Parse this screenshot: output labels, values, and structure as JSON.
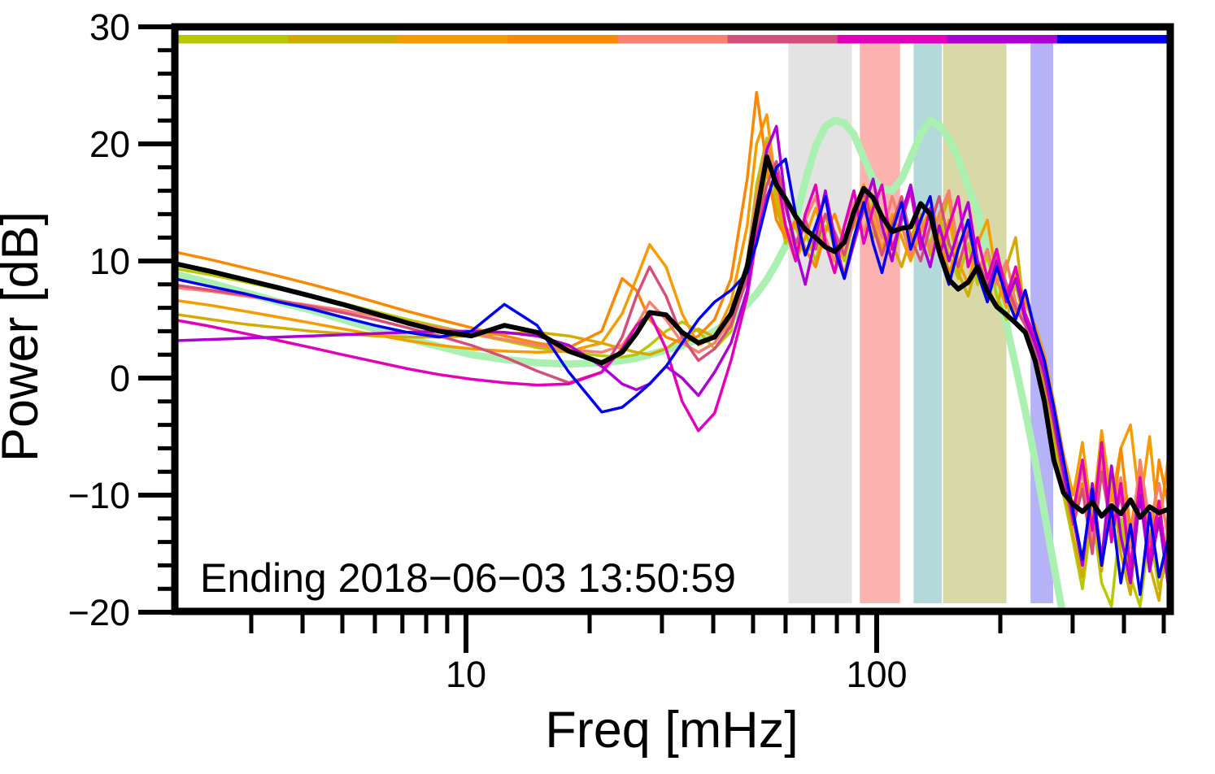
{
  "figure": {
    "xlabel": "Freq [mHz]",
    "ylabel": "Power [dB]",
    "annotation": "Ending 2018−06−03 13:50:59"
  },
  "chart_data": {
    "type": "line",
    "x_scale": "log",
    "xlabel": "Freq [mHz]",
    "ylabel": "Power [dB]",
    "xlim": [
      2,
      520
    ],
    "ylim": [
      -20,
      30
    ],
    "grid": false,
    "legend": "none",
    "annotation": "Ending 2018−06−03 13:50:59",
    "x_ticks": [
      {
        "v": 10,
        "label": "10"
      },
      {
        "v": 100,
        "label": "100"
      }
    ],
    "x_minor_ticks": [
      3,
      4,
      5,
      6,
      7,
      8,
      9,
      20,
      30,
      40,
      50,
      60,
      70,
      80,
      90,
      200,
      300,
      400,
      500
    ],
    "y_ticks": [
      {
        "v": 30,
        "label": "30"
      },
      {
        "v": 20,
        "label": "20"
      },
      {
        "v": 10,
        "label": "10"
      },
      {
        "v": 0,
        "label": "0"
      },
      {
        "v": -10,
        "label": "−10"
      },
      {
        "v": -20,
        "label": "−20"
      }
    ],
    "y_minor_ticks": [
      -18,
      -16,
      -14,
      -12,
      -8,
      -6,
      -4,
      -2,
      2,
      4,
      6,
      8,
      12,
      14,
      16,
      18,
      22,
      24,
      26,
      28
    ],
    "top_bar": {
      "layout": "9 equal-width segments spanning plot top",
      "segments": [
        {
          "name": "yellow-green",
          "color": "#b8c800"
        },
        {
          "name": "gold",
          "color": "#d2ab00"
        },
        {
          "name": "orange",
          "color": "#f59d00"
        },
        {
          "name": "dark-orange",
          "color": "#fb8800"
        },
        {
          "name": "salmon",
          "color": "#f97f6e"
        },
        {
          "name": "crimson",
          "color": "#d4507a"
        },
        {
          "name": "magenta",
          "color": "#e300bb"
        },
        {
          "name": "purple",
          "color": "#ad00d2"
        },
        {
          "name": "blue",
          "color": "#0000f0"
        }
      ]
    },
    "bands": [
      {
        "name": "gray",
        "color": "#e3e3e3",
        "x_from": 61,
        "x_to": 87
      },
      {
        "name": "pink",
        "color": "#fcb2ae",
        "x_from": 91,
        "x_to": 114
      },
      {
        "name": "teal",
        "color": "#b4d9da",
        "x_from": 123,
        "x_to": 144
      },
      {
        "name": "olive",
        "color": "#d8d9a7",
        "x_from": 145,
        "x_to": 207
      },
      {
        "name": "lavender",
        "color": "#b6b2f8",
        "x_from": 237,
        "x_to": 269
      }
    ],
    "x": [
      2,
      2.4,
      2.9,
      3.5,
      4.2,
      5,
      6,
      7.2,
      8.6,
      10.3,
      12.4,
      14.9,
      17.8,
      21.4,
      24,
      26,
      28,
      30.7,
      33.6,
      36.8,
      40.3,
      44.2,
      48.4,
      51,
      54,
      57,
      60,
      63.5,
      67,
      71,
      75,
      79,
      83.4,
      88,
      93,
      98,
      103,
      109,
      115,
      121,
      128,
      135,
      142,
      150,
      158,
      167,
      176,
      186,
      196,
      207,
      218,
      230,
      243,
      256,
      270,
      285,
      301,
      317,
      335,
      353,
      373,
      393,
      415,
      438,
      462,
      487,
      514
    ],
    "series": [
      {
        "name": "smooth-envelope",
        "color": "#aaf0b0",
        "width": 9,
        "values": [
          8.8,
          8.1,
          7.3,
          6.5,
          5.8,
          5.0,
          4.2,
          3.4,
          2.7,
          2.0,
          1.6,
          1.3,
          1.2,
          1.3,
          1.5,
          1.7,
          2.0,
          2.4,
          2.8,
          3.3,
          4.0,
          5.0,
          6.3,
          7.2,
          8.4,
          9.8,
          11.3,
          13.5,
          16.8,
          19.8,
          21.5,
          22.0,
          21.8,
          20.8,
          18.8,
          17.0,
          16.2,
          16.0,
          17.0,
          18.8,
          20.8,
          22.0,
          21.6,
          20.4,
          18.8,
          16.3,
          14.3,
          10.8,
          8.0,
          4.6,
          1.0,
          -2.8,
          -7.0,
          -11.5,
          -16.0,
          -20.5,
          null,
          null,
          null,
          null,
          null,
          null,
          null,
          null,
          null,
          null,
          null
        ]
      },
      {
        "name": "yellow-green",
        "color": "#b8c800",
        "width": 3.5,
        "values": [
          9.3,
          8.8,
          8.2,
          7.6,
          7.0,
          6.4,
          5.7,
          5.0,
          4.4,
          3.8,
          3.2,
          2.6,
          2.2,
          1.9,
          1.8,
          2.0,
          2.8,
          4.0,
          4.8,
          4.0,
          2.5,
          4.0,
          10.0,
          16.5,
          20.5,
          15.0,
          11.5,
          13.5,
          12.5,
          10.0,
          13.0,
          12.0,
          10.0,
          13.5,
          12.5,
          15.0,
          12.5,
          10.0,
          13.0,
          11.0,
          13.0,
          11.5,
          14.0,
          10.5,
          8.5,
          11.5,
          8.0,
          10.5,
          7.0,
          5.0,
          8.0,
          4.5,
          2.0,
          -1.0,
          -5.5,
          -10.0,
          -14.0,
          -18.0,
          -11.5,
          -17.5,
          -19.5,
          -12.0,
          -17.0,
          -19.5,
          -13.0,
          -18.0,
          -15.0
        ]
      },
      {
        "name": "gold",
        "color": "#d2ab00",
        "width": 3.5,
        "values": [
          5.4,
          5.0,
          4.6,
          4.3,
          4.0,
          3.8,
          3.6,
          3.5,
          3.5,
          3.6,
          3.8,
          3.9,
          3.6,
          3.0,
          2.5,
          2.2,
          2.0,
          2.5,
          3.5,
          4.2,
          3.5,
          4.5,
          9.0,
          14.0,
          17.5,
          14.5,
          12.0,
          13.0,
          10.5,
          12.0,
          14.0,
          11.0,
          9.0,
          12.0,
          14.5,
          12.0,
          14.0,
          11.5,
          9.5,
          12.0,
          14.0,
          10.5,
          13.0,
          15.5,
          9.0,
          7.0,
          10.0,
          8.0,
          6.0,
          9.5,
          12.0,
          5.0,
          2.5,
          -0.5,
          -4.5,
          -9.0,
          -13.5,
          -17.0,
          -10.0,
          -16.5,
          -8.5,
          -15.0,
          -18.5,
          -9.5,
          -16.0,
          -19.0,
          -12.0
        ]
      },
      {
        "name": "orange",
        "color": "#f59d00",
        "width": 3.5,
        "values": [
          6.6,
          6.2,
          5.7,
          5.2,
          4.7,
          4.2,
          3.7,
          3.2,
          2.8,
          2.5,
          2.3,
          2.2,
          2.3,
          3.0,
          5.5,
          8.5,
          11.4,
          9.5,
          5.5,
          2.8,
          3.5,
          6.5,
          13.0,
          20.0,
          22.5,
          16.0,
          12.5,
          10.0,
          12.0,
          14.5,
          12.0,
          9.0,
          11.5,
          14.5,
          16.5,
          13.5,
          11.0,
          14.0,
          12.0,
          10.0,
          12.5,
          14.5,
          11.0,
          13.5,
          10.0,
          8.0,
          11.5,
          13.5,
          8.5,
          6.0,
          9.0,
          6.5,
          4.5,
          2.0,
          -2.0,
          -6.5,
          -10.0,
          -5.5,
          -12.0,
          -4.5,
          -10.5,
          -6.0,
          -4.0,
          -11.0,
          -5.0,
          -13.0,
          -6.5
        ]
      },
      {
        "name": "dark-orange",
        "color": "#fb8800",
        "width": 3.5,
        "values": [
          10.7,
          10.1,
          9.4,
          8.7,
          8.0,
          7.3,
          6.5,
          5.7,
          5.0,
          4.3,
          3.6,
          3.0,
          2.6,
          4.0,
          8.5,
          7.5,
          5.0,
          3.5,
          3.0,
          3.6,
          5.0,
          8.5,
          17.0,
          24.4,
          18.0,
          13.5,
          12.0,
          13.5,
          11.0,
          9.5,
          12.5,
          14.0,
          11.5,
          13.0,
          15.5,
          13.0,
          10.5,
          13.5,
          15.0,
          11.5,
          13.5,
          15.5,
          12.0,
          9.0,
          11.0,
          13.0,
          9.0,
          7.0,
          10.5,
          7.5,
          5.5,
          7.0,
          4.0,
          1.0,
          -3.0,
          -8.0,
          -12.0,
          -9.0,
          -14.0,
          -7.5,
          -12.5,
          -6.0,
          -13.0,
          -8.0,
          -15.0,
          -7.0,
          -11.0
        ]
      },
      {
        "name": "salmon",
        "color": "#f97f6e",
        "width": 3.5,
        "values": [
          7.7,
          7.4,
          7.0,
          6.6,
          6.2,
          5.8,
          5.3,
          4.8,
          4.3,
          3.8,
          3.3,
          2.8,
          2.4,
          2.2,
          2.8,
          4.5,
          6.5,
          5.0,
          3.0,
          2.2,
          3.0,
          5.0,
          10.0,
          15.5,
          20.0,
          17.0,
          13.0,
          11.0,
          13.5,
          15.5,
          12.0,
          10.0,
          13.0,
          15.0,
          12.5,
          14.5,
          12.0,
          15.5,
          13.0,
          10.5,
          13.5,
          11.0,
          14.0,
          16.0,
          11.0,
          13.0,
          9.0,
          11.0,
          8.0,
          10.0,
          6.5,
          5.0,
          3.0,
          0.5,
          -3.5,
          -7.5,
          -11.0,
          -8.0,
          -13.5,
          -6.5,
          -12.0,
          -8.5,
          -14.5,
          -7.0,
          -12.5,
          -9.0,
          -14.0
        ]
      },
      {
        "name": "crimson",
        "color": "#d4507a",
        "width": 3.5,
        "values": [
          7.9,
          7.5,
          7.1,
          6.6,
          6.1,
          5.6,
          5.0,
          4.3,
          3.6,
          2.8,
          1.8,
          0.6,
          -0.4,
          0.5,
          3.5,
          7.0,
          9.5,
          7.0,
          3.5,
          1.5,
          2.5,
          4.5,
          8.5,
          13.0,
          16.5,
          18.5,
          14.5,
          11.5,
          13.5,
          11.0,
          14.0,
          12.5,
          10.5,
          13.5,
          16.0,
          13.0,
          10.5,
          13.0,
          15.5,
          12.0,
          10.0,
          13.0,
          15.5,
          11.5,
          9.5,
          12.5,
          10.0,
          8.0,
          10.5,
          8.0,
          6.0,
          4.5,
          2.5,
          0.0,
          -4.0,
          -8.5,
          -12.5,
          -9.5,
          -15.0,
          -8.0,
          -13.0,
          -10.0,
          -16.0,
          -9.0,
          -14.0,
          -11.0,
          -16.5
        ]
      },
      {
        "name": "magenta",
        "color": "#e300bb",
        "width": 3.5,
        "values": [
          4.9,
          4.4,
          3.8,
          3.2,
          2.6,
          2.0,
          1.4,
          0.8,
          0.3,
          -0.1,
          -0.4,
          -0.6,
          -0.5,
          0.5,
          2.5,
          4.5,
          5.5,
          2.5,
          -2.0,
          -4.5,
          -3.0,
          1.5,
          7.0,
          12.0,
          15.5,
          17.5,
          13.0,
          10.0,
          14.0,
          16.5,
          11.5,
          9.0,
          13.0,
          16.0,
          11.5,
          14.5,
          16.5,
          11.0,
          13.5,
          16.0,
          11.0,
          14.5,
          10.5,
          13.0,
          15.5,
          9.5,
          12.0,
          8.5,
          11.0,
          7.0,
          9.5,
          5.5,
          3.5,
          1.0,
          -3.0,
          -7.5,
          -11.5,
          -7.0,
          -13.0,
          -5.5,
          -14.0,
          -9.0,
          -16.5,
          -8.5,
          -15.5,
          -10.5,
          -17.5
        ]
      },
      {
        "name": "purple",
        "color": "#ad00d2",
        "width": 3.5,
        "values": [
          3.2,
          3.3,
          3.4,
          3.5,
          3.6,
          3.7,
          3.8,
          3.9,
          4.0,
          4.0,
          3.9,
          3.6,
          2.8,
          1.0,
          -0.5,
          -1.0,
          -0.5,
          1.0,
          0.0,
          -1.5,
          0.5,
          3.0,
          7.5,
          14.0,
          19.5,
          21.5,
          15.0,
          11.0,
          8.0,
          12.0,
          16.0,
          12.0,
          8.5,
          11.5,
          14.5,
          17.0,
          13.0,
          10.0,
          14.0,
          16.5,
          12.0,
          9.5,
          13.0,
          10.0,
          12.5,
          15.0,
          10.0,
          7.5,
          10.0,
          6.5,
          8.5,
          5.0,
          3.0,
          0.5,
          -3.5,
          -8.0,
          -12.0,
          -16.0,
          -9.0,
          -15.5,
          -7.5,
          -13.5,
          -17.5,
          -10.0,
          -16.5,
          -12.0,
          -18.0
        ]
      },
      {
        "name": "blue",
        "color": "#0000f0",
        "width": 3.5,
        "values": [
          8.4,
          7.8,
          7.2,
          6.5,
          5.9,
          5.2,
          4.5,
          3.9,
          3.5,
          4.0,
          6.3,
          4.5,
          0.5,
          -2.9,
          -2.5,
          -1.5,
          -0.5,
          1.0,
          3.0,
          5.0,
          6.5,
          7.5,
          9.0,
          11.5,
          15.0,
          18.0,
          18.7,
          14.0,
          10.5,
          13.0,
          15.5,
          11.0,
          8.5,
          12.0,
          15.0,
          11.5,
          9.0,
          12.5,
          15.0,
          11.0,
          13.5,
          15.5,
          10.5,
          8.0,
          11.0,
          13.5,
          9.0,
          6.5,
          9.5,
          7.0,
          5.0,
          7.5,
          4.0,
          1.5,
          -2.5,
          -7.0,
          -11.5,
          -15.5,
          -9.5,
          -16.0,
          -11.0,
          -17.5,
          -12.5,
          -18.5,
          -11.5,
          -17.0,
          -13.5
        ]
      },
      {
        "name": "mean",
        "color": "#000000",
        "width": 6,
        "values": [
          9.7,
          9.1,
          8.4,
          7.7,
          7.0,
          6.3,
          5.5,
          4.7,
          4.0,
          3.6,
          4.5,
          3.9,
          2.3,
          1.3,
          2.2,
          3.8,
          5.6,
          5.4,
          3.9,
          3.0,
          3.5,
          5.5,
          9.5,
          14.0,
          18.9,
          16.5,
          15.3,
          13.8,
          12.7,
          12.0,
          11.2,
          10.8,
          11.6,
          14.2,
          16.2,
          15.4,
          13.8,
          12.5,
          12.8,
          12.9,
          14.9,
          14.0,
          10.8,
          8.4,
          7.6,
          8.2,
          9.5,
          7.4,
          6.1,
          5.4,
          4.7,
          3.9,
          1.5,
          -2.0,
          -7.0,
          -9.8,
          -10.8,
          -11.4,
          -10.6,
          -11.8,
          -10.9,
          -11.6,
          -10.4,
          -11.9,
          -11.0,
          -11.5,
          -11.2
        ]
      }
    ]
  }
}
